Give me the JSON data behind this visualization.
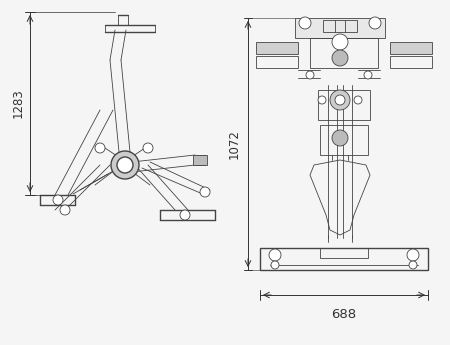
{
  "bg_color": "#f5f5f5",
  "line_color": "#444444",
  "dim_color": "#333333",
  "lw_main": 1.0,
  "lw_thin": 0.6,
  "lw_dim": 0.7,
  "fs_dim": 8.5,
  "left_dim_label": "1283",
  "right_dim_height": "1072",
  "right_dim_width": "688",
  "fig_w": 4.5,
  "fig_h": 3.45,
  "dpi": 100
}
